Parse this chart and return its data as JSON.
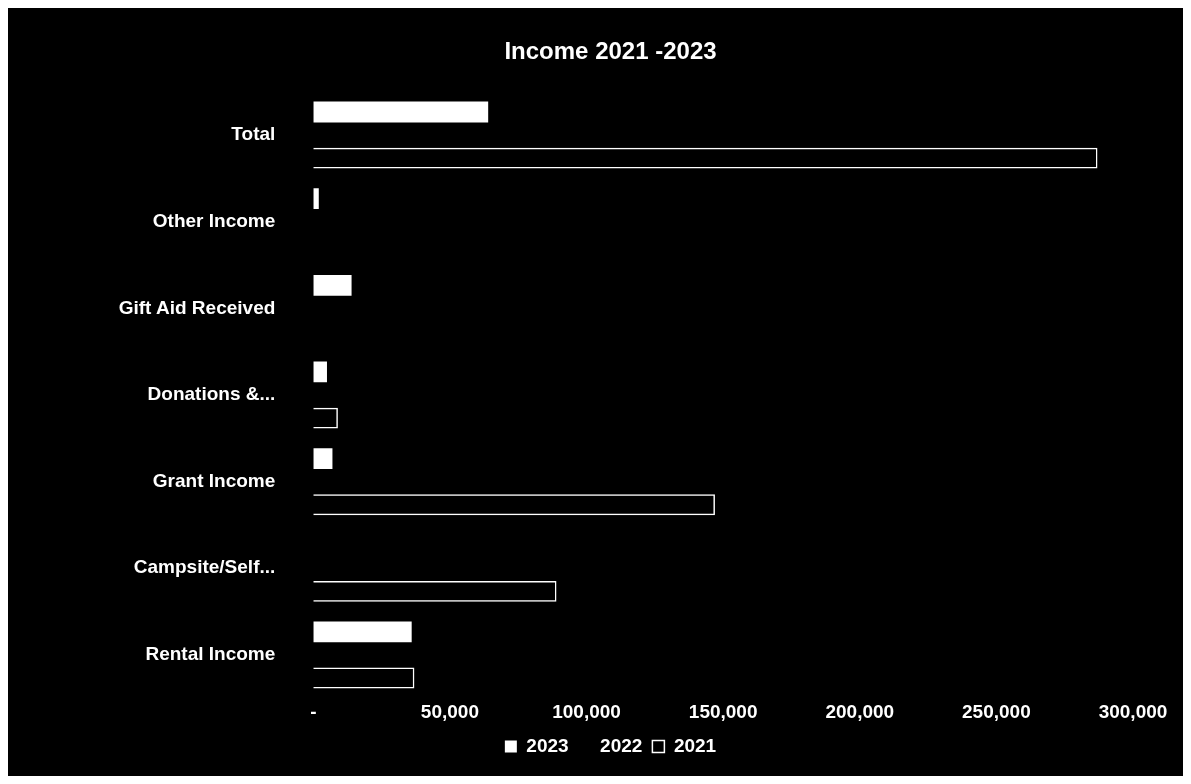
{
  "chart_data": {
    "type": "bar",
    "orientation": "horizontal",
    "title": "Income 2021 -2023",
    "categories": [
      "Total",
      "Other Income",
      "Gift Aid Received",
      "Donations &...",
      "Grant Income",
      "Campsite/Self...",
      "Rental Income"
    ],
    "series": [
      {
        "name": "2023",
        "color": "#ffffff",
        "values": [
          64000,
          2000,
          14000,
          5000,
          7000,
          null,
          36000
        ]
      },
      {
        "name": "2022",
        "values": [
          null,
          null,
          null,
          null,
          null,
          null,
          null
        ]
      },
      {
        "name": "2021",
        "color": "#ffffff",
        "values": [
          287000,
          null,
          null,
          9000,
          147000,
          89000,
          37000
        ]
      }
    ],
    "xlim": [
      0,
      300000
    ],
    "xticks": [
      {
        "value": 0,
        "label": "-"
      },
      {
        "value": 50000,
        "label": "50,000"
      },
      {
        "value": 100000,
        "label": "100,000"
      },
      {
        "value": 150000,
        "label": "150,000"
      },
      {
        "value": 200000,
        "label": "200,000"
      },
      {
        "value": 250000,
        "label": "250,000"
      },
      {
        "value": 300000,
        "label": "300,000"
      }
    ],
    "legend": "bottom"
  }
}
